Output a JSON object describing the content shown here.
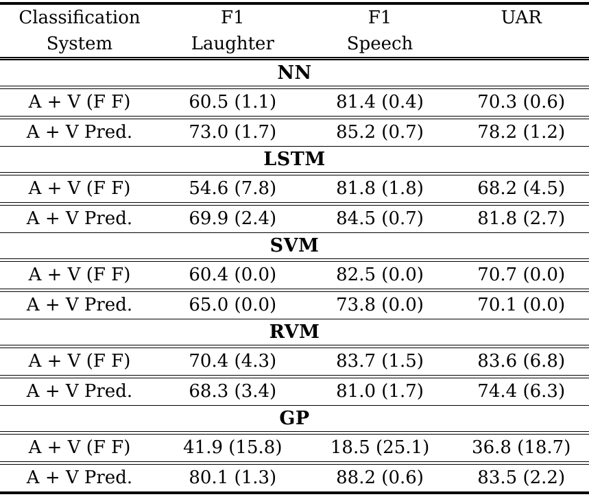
{
  "table": {
    "header_row1": [
      "Classification",
      "F1",
      "F1",
      "UAR"
    ],
    "header_row2": [
      "System",
      "Laughter",
      "Speech",
      ""
    ],
    "sections": [
      {
        "name": "NN",
        "rows": [
          {
            "cells": [
              "A + V (F F)",
              "60.5 (1.1)",
              "81.4 (0.4)",
              "70.3 (0.6)"
            ]
          },
          {
            "cells": [
              "A + V Pred.",
              "73.0 (1.7)",
              "85.2 (0.7)",
              "78.2 (1.2)"
            ]
          }
        ]
      },
      {
        "name": "LSTM",
        "rows": [
          {
            "cells": [
              "A + V (F F)",
              "54.6 (7.8)",
              "81.8 (1.8)",
              "68.2 (4.5)"
            ]
          },
          {
            "cells": [
              "A + V Pred.",
              "69.9 (2.4)",
              "84.5 (0.7)",
              "81.8 (2.7)"
            ]
          }
        ]
      },
      {
        "name": "SVM",
        "rows": [
          {
            "cells": [
              "A + V (F F)",
              "60.4 (0.0)",
              "82.5 (0.0)",
              "70.7 (0.0)"
            ]
          },
          {
            "cells": [
              "A + V Pred.",
              "65.0 (0.0)",
              "73.8 (0.0)",
              "70.1 (0.0)"
            ]
          }
        ]
      },
      {
        "name": "RVM",
        "rows": [
          {
            "cells": [
              "A + V (F F)",
              "70.4 (4.3)",
              "83.7 (1.5)",
              "83.6 (6.8)"
            ]
          },
          {
            "cells": [
              "A + V Pred.",
              "68.3 (3.4)",
              "81.0 (1.7)",
              "74.4 (6.3)"
            ]
          }
        ]
      },
      {
        "name": "GP",
        "rows": [
          {
            "cells": [
              "A + V (F F)",
              "41.9 (15.8)",
              "18.5 (25.1)",
              "36.8 (18.7)"
            ]
          },
          {
            "cells": [
              "A + V Pred.",
              "80.1 (1.3)",
              "88.2 (0.6)",
              "83.5 (2.2)"
            ]
          }
        ]
      }
    ],
    "colors": {
      "text": "#000000",
      "background": "#ffffff",
      "rule": "#000000"
    }
  }
}
